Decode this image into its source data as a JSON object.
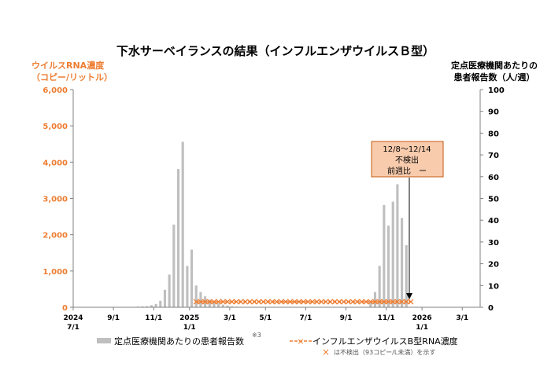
{
  "colors": {
    "left_axis": "#ED7D31",
    "bar": "#BFBFBF",
    "line": "#ED7D31",
    "callout_fill": "#F8CBAD",
    "callout_border": "#C55A11",
    "axis": "#808080"
  },
  "chart_data": {
    "type": "bar+line",
    "title": "下水サーベイランスの結果（インフルエンザウイルスＢ型）",
    "ylabel_left": [
      "ウイルスRNA濃度",
      "（コピー/リットル）"
    ],
    "ylabel_right": [
      "定点医療機関あたりの",
      "患者報告数（人/週）"
    ],
    "ylim_left": [
      0,
      6000
    ],
    "ylim_right": [
      0,
      100
    ],
    "left_ticks": [
      "0",
      "1,000",
      "2,000",
      "3,000",
      "4,000",
      "5,000",
      "6,000"
    ],
    "right_ticks": [
      "0",
      "10",
      "20",
      "30",
      "40",
      "50",
      "60",
      "70",
      "80",
      "90",
      "100"
    ],
    "x_ticks": [
      {
        "week": 0,
        "line1": "2024",
        "line2": "7/1"
      },
      {
        "week": 9,
        "line1": "9/1",
        "line2": ""
      },
      {
        "week": 18,
        "line1": "11/1",
        "line2": ""
      },
      {
        "week": 26,
        "line1": "2025",
        "line2": "1/1"
      },
      {
        "week": 35,
        "line1": "3/1",
        "line2": ""
      },
      {
        "week": 43,
        "line1": "5/1",
        "line2": ""
      },
      {
        "week": 52,
        "line1": "7/1",
        "line2": ""
      },
      {
        "week": 61,
        "line1": "9/1",
        "line2": ""
      },
      {
        "week": 70,
        "line1": "11/1",
        "line2": ""
      },
      {
        "week": 78,
        "line1": "2026",
        "line2": "1/1"
      },
      {
        "week": 87,
        "line1": "3/1",
        "line2": ""
      }
    ],
    "x_weeks": 91,
    "bars": {
      "name": "定点医療機関あたりの患者報告数",
      "name_note": "※3",
      "weeks": [
        6,
        10,
        14,
        15,
        16,
        17,
        18,
        19,
        20,
        21,
        22,
        23,
        24,
        25,
        26,
        27,
        28,
        29,
        30,
        31,
        32,
        33,
        34,
        35,
        36,
        37,
        38,
        66,
        67,
        68,
        69,
        70,
        71,
        72,
        73,
        74
      ],
      "values": [
        0.2,
        0.2,
        0.3,
        0.4,
        0.5,
        1.0,
        1.5,
        3.0,
        8.0,
        15.0,
        38.0,
        63.5,
        76.0,
        19.0,
        26.5,
        10.0,
        7.0,
        5.0,
        3.5,
        2.5,
        1.8,
        1.2,
        0.8,
        0.5,
        0.3,
        0.2,
        0.1,
        2.0,
        7.0,
        19.0,
        47.0,
        37.5,
        48.5,
        56.5,
        41.0,
        28.5
      ]
    },
    "line": {
      "name": "インフルエンザウイルスB型RNA濃度",
      "start_week": 27,
      "end_week": 75,
      "values_copies_per_L": 0,
      "marker": "×",
      "note": "は不検出（93コピー/L未満）を示す"
    },
    "callout": {
      "lines": [
        "12/8～12/14",
        "不検出",
        "前週比　ー"
      ],
      "target_week": 75
    }
  }
}
